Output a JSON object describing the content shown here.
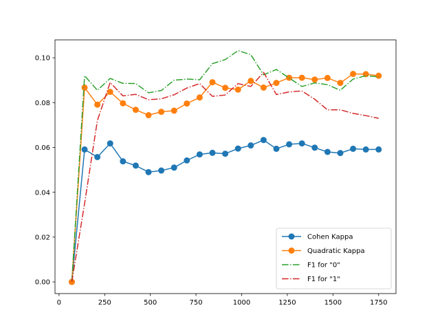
{
  "chart_data": {
    "type": "line",
    "title": "",
    "xlabel": "",
    "ylabel": "",
    "xlim": [
      -22,
      1845
    ],
    "ylim": [
      -0.0052,
      0.108
    ],
    "xticks": [
      0,
      250,
      500,
      750,
      1000,
      1250,
      1500,
      1750
    ],
    "xtick_labels": [
      "0",
      "250",
      "500",
      "750",
      "1000",
      "1250",
      "1500",
      "1750"
    ],
    "yticks": [
      0.0,
      0.02,
      0.04,
      0.06,
      0.08,
      0.1
    ],
    "ytick_labels": [
      "0.00",
      "0.02",
      "0.04",
      "0.06",
      "0.08",
      "0.10"
    ],
    "grid": false,
    "legend_position": "lower-right",
    "x": [
      70,
      140,
      210,
      280,
      350,
      420,
      490,
      560,
      630,
      700,
      770,
      840,
      910,
      980,
      1050,
      1120,
      1190,
      1260,
      1330,
      1400,
      1470,
      1540,
      1610,
      1680,
      1750
    ],
    "series": [
      {
        "name": "Cohen Kappa",
        "color": "#1f77b4",
        "style": "solid-marker",
        "values": [
          0.0,
          0.0591,
          0.0557,
          0.0618,
          0.0538,
          0.0519,
          0.049,
          0.0497,
          0.051,
          0.0542,
          0.0569,
          0.0576,
          0.0572,
          0.0595,
          0.0609,
          0.0633,
          0.0594,
          0.0614,
          0.0618,
          0.0599,
          0.058,
          0.0575,
          0.0594,
          0.0591,
          0.0591
        ]
      },
      {
        "name": "Quadratic Kappa",
        "color": "#ff7f0e",
        "style": "solid-marker",
        "values": [
          0.0,
          0.0867,
          0.0791,
          0.0848,
          0.0797,
          0.0768,
          0.0744,
          0.0759,
          0.0764,
          0.0796,
          0.0823,
          0.0891,
          0.0866,
          0.0858,
          0.0897,
          0.0867,
          0.0888,
          0.0911,
          0.0911,
          0.0903,
          0.091,
          0.0888,
          0.0928,
          0.0927,
          0.092
        ]
      },
      {
        "name": "F1 for \"0\"",
        "color": "#2ca02c",
        "style": "dashdot",
        "values": [
          0.0,
          0.092,
          0.0855,
          0.0908,
          0.0886,
          0.0885,
          0.0844,
          0.0854,
          0.09,
          0.0905,
          0.0902,
          0.0974,
          0.0992,
          0.1032,
          0.1014,
          0.0924,
          0.0948,
          0.091,
          0.0872,
          0.0888,
          0.088,
          0.0855,
          0.0905,
          0.092,
          0.0915
        ]
      },
      {
        "name": "F1 for \"1\"",
        "color": "#d62728",
        "style": "dashdot",
        "values": [
          0.0,
          0.035,
          0.072,
          0.089,
          0.083,
          0.0837,
          0.0813,
          0.0817,
          0.0835,
          0.0865,
          0.0885,
          0.0828,
          0.0834,
          0.0885,
          0.0872,
          0.0935,
          0.0836,
          0.0848,
          0.0852,
          0.0815,
          0.0768,
          0.0768,
          0.0752,
          0.0742,
          0.073
        ]
      }
    ]
  }
}
